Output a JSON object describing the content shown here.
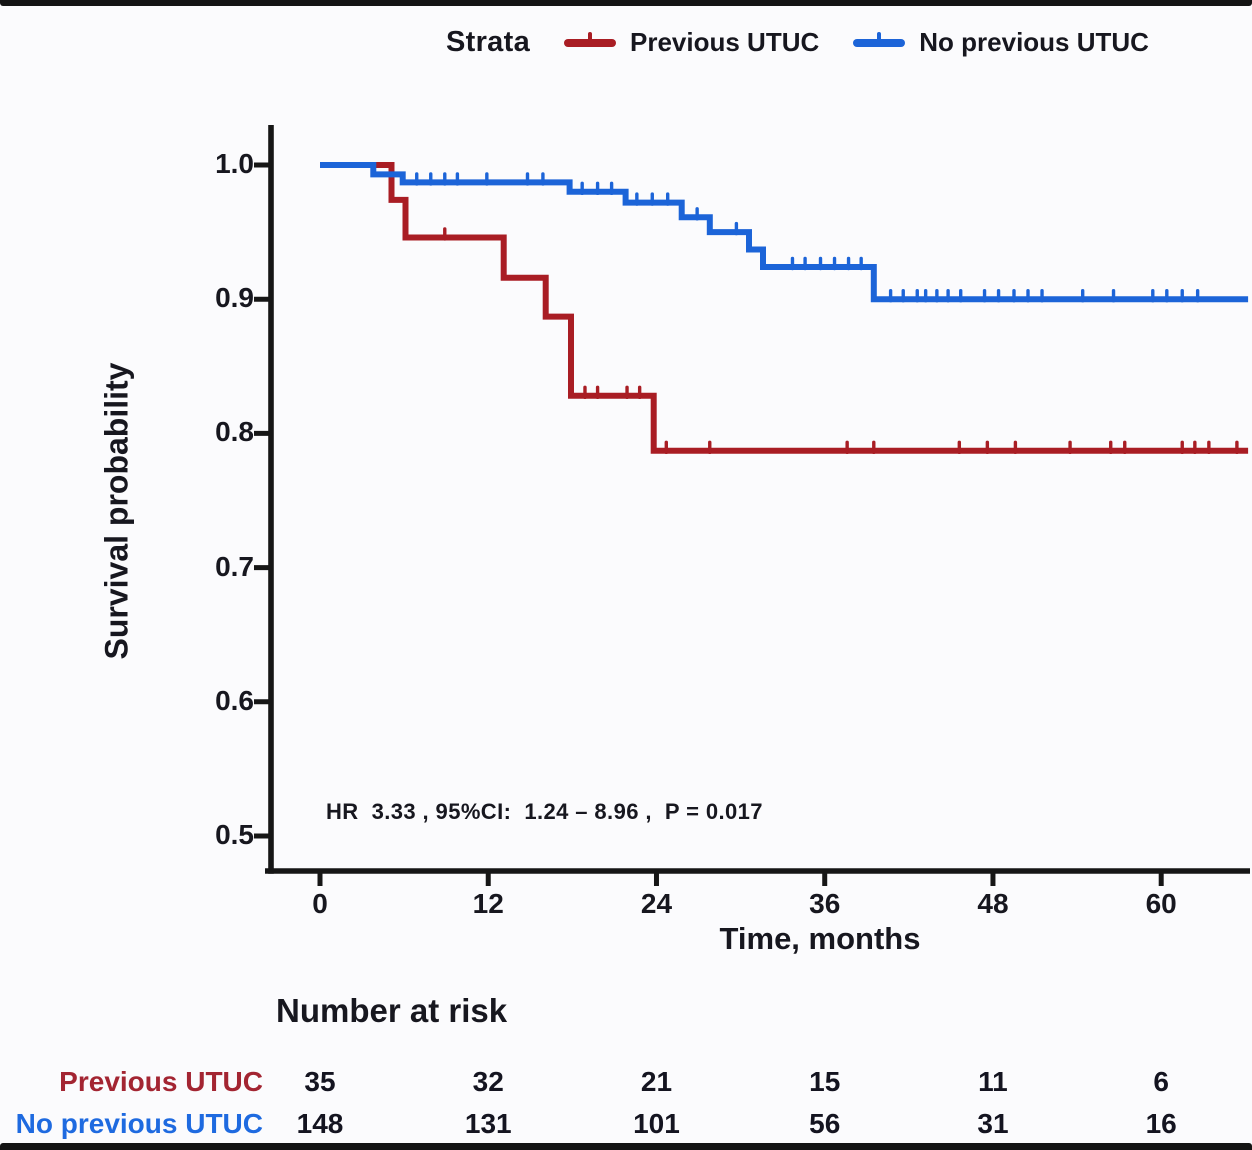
{
  "legend": {
    "title": "Strata",
    "items": [
      {
        "label": "Previous UTUC",
        "color": "#A91D24"
      },
      {
        "label": "No previous UTUC",
        "color": "#1C64D8"
      }
    ]
  },
  "chart_data": {
    "type": "line",
    "subtype": "kaplan-meier-step",
    "title": "",
    "xlabel": "Time, months",
    "ylabel": "Survival probability",
    "xlim": [
      0,
      66.2
    ],
    "ylim": [
      0.47,
      1.03
    ],
    "xticks": [
      0,
      12,
      24,
      36,
      48,
      60
    ],
    "yticks": [
      1.0,
      0.9,
      0.8,
      0.7,
      0.6,
      0.5
    ],
    "grid": false,
    "legend_position": "top-center",
    "annotation": "HR  3.33 , 95%CI:  1.24 – 8.96 ,  P = 0.017",
    "series": [
      {
        "name": "Previous UTUC",
        "color": "#A91D24",
        "steps": [
          [
            0,
            1.0
          ],
          [
            5.1,
            0.974
          ],
          [
            6.1,
            0.946
          ],
          [
            13.1,
            0.916
          ],
          [
            16.1,
            0.887
          ],
          [
            17.9,
            0.828
          ],
          [
            23.8,
            0.787
          ],
          [
            66.2,
            0.787
          ]
        ],
        "censors": [
          [
            8.9,
            0.946
          ],
          [
            18.9,
            0.828
          ],
          [
            19.8,
            0.828
          ],
          [
            21.9,
            0.828
          ],
          [
            22.8,
            0.828
          ],
          [
            24.7,
            0.787
          ],
          [
            27.8,
            0.787
          ],
          [
            37.6,
            0.787
          ],
          [
            39.5,
            0.787
          ],
          [
            45.6,
            0.787
          ],
          [
            47.6,
            0.787
          ],
          [
            49.6,
            0.787
          ],
          [
            53.5,
            0.787
          ],
          [
            56.4,
            0.787
          ],
          [
            57.4,
            0.787
          ],
          [
            61.5,
            0.787
          ],
          [
            62.4,
            0.787
          ],
          [
            63.4,
            0.787
          ],
          [
            65.4,
            0.787
          ]
        ]
      },
      {
        "name": "No previous UTUC",
        "color": "#1C64D8",
        "steps": [
          [
            0,
            1.0
          ],
          [
            3.8,
            0.993
          ],
          [
            5.9,
            0.987
          ],
          [
            17.8,
            0.98
          ],
          [
            21.8,
            0.972
          ],
          [
            25.8,
            0.961
          ],
          [
            27.8,
            0.95
          ],
          [
            30.6,
            0.937
          ],
          [
            31.6,
            0.924
          ],
          [
            39.5,
            0.9
          ],
          [
            66.2,
            0.9
          ]
        ],
        "censors": [
          [
            6.9,
            0.987
          ],
          [
            7.9,
            0.987
          ],
          [
            8.9,
            0.987
          ],
          [
            9.8,
            0.987
          ],
          [
            11.9,
            0.987
          ],
          [
            14.8,
            0.987
          ],
          [
            15.9,
            0.987
          ],
          [
            18.7,
            0.98
          ],
          [
            19.8,
            0.98
          ],
          [
            20.8,
            0.98
          ],
          [
            22.6,
            0.972
          ],
          [
            23.7,
            0.972
          ],
          [
            24.8,
            0.972
          ],
          [
            26.9,
            0.961
          ],
          [
            29.7,
            0.95
          ],
          [
            33.7,
            0.924
          ],
          [
            34.6,
            0.924
          ],
          [
            35.7,
            0.924
          ],
          [
            36.7,
            0.924
          ],
          [
            37.7,
            0.924
          ],
          [
            38.6,
            0.924
          ],
          [
            40.7,
            0.9
          ],
          [
            41.6,
            0.9
          ],
          [
            42.6,
            0.9
          ],
          [
            43.2,
            0.9
          ],
          [
            44.0,
            0.9
          ],
          [
            44.8,
            0.9
          ],
          [
            45.7,
            0.9
          ],
          [
            47.4,
            0.9
          ],
          [
            48.4,
            0.9
          ],
          [
            49.5,
            0.9
          ],
          [
            50.5,
            0.9
          ],
          [
            51.5,
            0.9
          ],
          [
            54.4,
            0.9
          ],
          [
            56.6,
            0.9
          ],
          [
            59.4,
            0.9
          ],
          [
            60.4,
            0.9
          ],
          [
            61.5,
            0.9
          ],
          [
            62.6,
            0.9
          ]
        ]
      }
    ]
  },
  "risk_table": {
    "title": "Number at risk",
    "time_points": [
      0,
      12,
      24,
      36,
      48,
      60
    ],
    "rows": [
      {
        "label": "Previous UTUC",
        "color": "#A32532",
        "values": [
          35,
          32,
          21,
          15,
          11,
          6
        ]
      },
      {
        "label": "No previous UTUC",
        "color": "#1E6AE0",
        "values": [
          148,
          131,
          101,
          56,
          31,
          16
        ]
      }
    ]
  },
  "colors": {
    "axis": "#161616",
    "text": "#17171F",
    "background": "#FBFBFD",
    "edge_bars": "#141414"
  }
}
